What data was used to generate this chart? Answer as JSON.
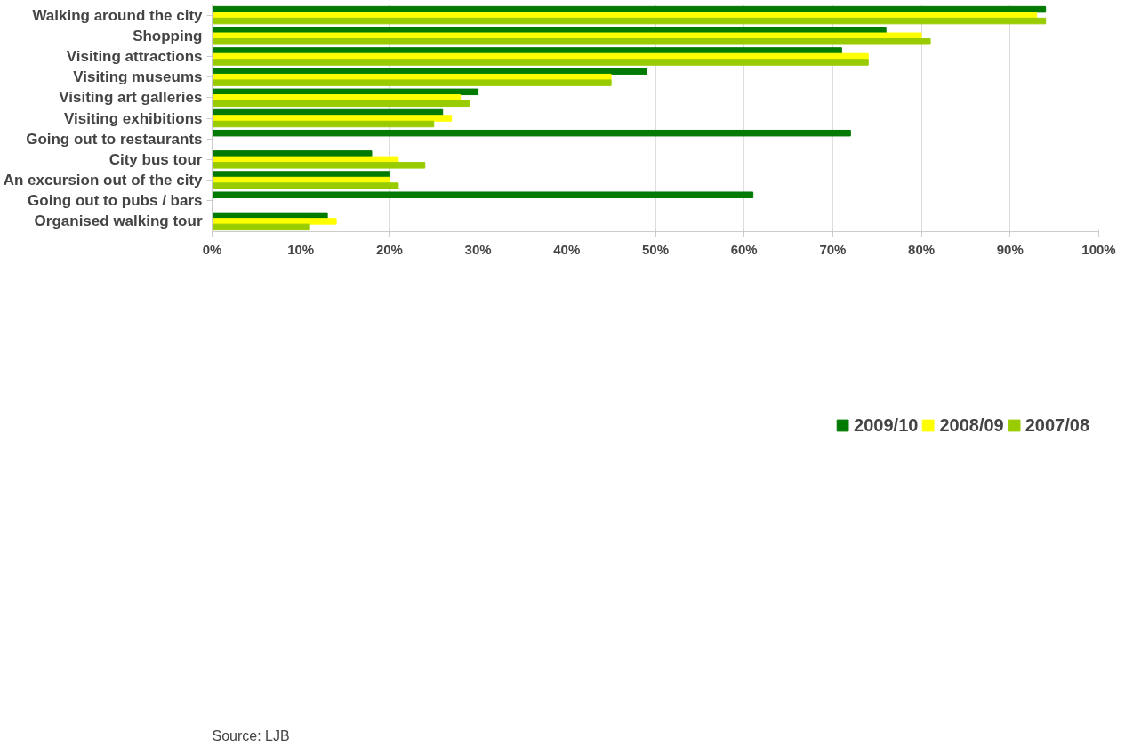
{
  "chart_data": {
    "type": "bar",
    "orientation": "horizontal",
    "categories": [
      "Walking around the city",
      "Shopping",
      "Visiting attractions",
      "Visiting museums",
      "Visiting art galleries",
      "Visiting exhibitions",
      "Going out to restaurants",
      "City bus tour",
      "An excursion out of the city",
      "Going out to pubs / bars",
      "Organised walking tour"
    ],
    "series": [
      {
        "name": "2009/10",
        "color": "#007a00",
        "values": [
          94,
          76,
          71,
          49,
          30,
          26,
          72,
          18,
          20,
          61,
          13
        ]
      },
      {
        "name": "2008/09",
        "color": "#ffff00",
        "values": [
          93,
          80,
          74,
          45,
          28,
          27,
          null,
          21,
          20,
          null,
          14
        ]
      },
      {
        "name": "2007/08",
        "color": "#99cc00",
        "values": [
          94,
          81,
          74,
          45,
          29,
          25,
          null,
          24,
          21,
          null,
          11
        ]
      }
    ],
    "xlim": [
      0,
      100
    ],
    "xticks": [
      {
        "value": 0,
        "label": "0%"
      },
      {
        "value": 10,
        "label": "10%"
      },
      {
        "value": 20,
        "label": "20%"
      },
      {
        "value": 30,
        "label": "30%"
      },
      {
        "value": 40,
        "label": "40%"
      },
      {
        "value": 50,
        "label": "50%"
      },
      {
        "value": 60,
        "label": "60%"
      },
      {
        "value": 70,
        "label": "70%"
      },
      {
        "value": 80,
        "label": "80%"
      },
      {
        "value": 90,
        "label": "90%"
      },
      {
        "value": 100,
        "label": "100%"
      }
    ],
    "grid": "x",
    "legend": "bottom",
    "annotations": [
      "Source: LJB"
    ]
  }
}
